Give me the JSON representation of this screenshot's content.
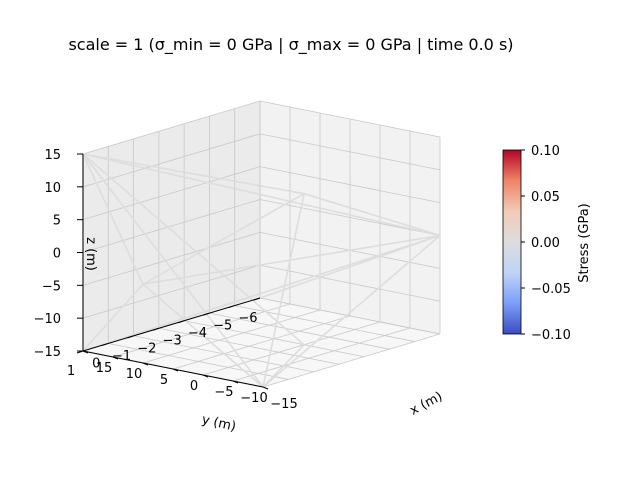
{
  "chart_data": {
    "type": "3d-wireframe",
    "title": "scale = 1 (σ_min = 0 GPa | σ_max = 0 GPa | time 0.0 s)",
    "xlabel": "x (m)",
    "ylabel": "y (m)",
    "zlabel": "z (m)",
    "xlim": [
      -15,
      15
    ],
    "ylim": [
      -6,
      1
    ],
    "zlim": [
      -15,
      15
    ],
    "xticks": [
      "−15",
      "−10",
      "−5",
      "0",
      "5",
      "10",
      "15"
    ],
    "yticks": [
      "−6",
      "−5",
      "−4",
      "−3",
      "−2",
      "−1",
      "0",
      "1"
    ],
    "zticks": [
      "15",
      "10",
      "5",
      "0",
      "−5",
      "−10",
      "−15"
    ],
    "grid": true,
    "member_color": "#dddddd",
    "members": [
      {
        "from": [
          -15,
          1,
          15
        ],
        "to": [
          15,
          -6,
          0
        ]
      },
      {
        "from": [
          -15,
          1,
          15
        ],
        "to": [
          5,
          -3,
          -15
        ]
      },
      {
        "from": [
          -15,
          1,
          15
        ],
        "to": [
          15,
          1,
          -15
        ]
      },
      {
        "from": [
          -15,
          1,
          15
        ],
        "to": [
          -15,
          1,
          -15
        ]
      },
      {
        "from": [
          5,
          -3,
          8
        ],
        "to": [
          15,
          -6,
          0
        ]
      },
      {
        "from": [
          5,
          -3,
          8
        ],
        "to": [
          -15,
          1,
          15
        ]
      },
      {
        "from": [
          5,
          -3,
          8
        ],
        "to": [
          15,
          1,
          -15
        ]
      },
      {
        "from": [
          5,
          -3,
          8
        ],
        "to": [
          -5,
          1,
          -3
        ]
      },
      {
        "from": [
          15,
          -6,
          0
        ],
        "to": [
          -5,
          1,
          -3
        ]
      },
      {
        "from": [
          15,
          -6,
          0
        ],
        "to": [
          15,
          1,
          -15
        ]
      },
      {
        "from": [
          15,
          -6,
          0
        ],
        "to": [
          -15,
          -6,
          -15
        ]
      },
      {
        "from": [
          15,
          -6,
          0
        ],
        "to": [
          -15,
          1,
          -15
        ]
      },
      {
        "from": [
          -5,
          1,
          -3
        ],
        "to": [
          15,
          1,
          -15
        ]
      },
      {
        "from": [
          -5,
          1,
          -3
        ],
        "to": [
          -15,
          1,
          -15
        ]
      },
      {
        "from": [
          -5,
          1,
          -3
        ],
        "to": [
          -15,
          1,
          15
        ]
      },
      {
        "from": [
          15,
          1,
          -15
        ],
        "to": [
          -15,
          1,
          -15
        ]
      },
      {
        "from": [
          15,
          1,
          -15
        ],
        "to": [
          5,
          -3,
          -15
        ]
      }
    ],
    "colorbar": {
      "label": "Stress (GPa)",
      "min": -0.1,
      "max": 0.1,
      "colormap": "coolwarm",
      "ticks": [
        "0.10",
        "0.05",
        "0.00",
        "−0.05",
        "−0.10"
      ],
      "tick_values": [
        0.1,
        0.05,
        0.0,
        -0.05,
        -0.1
      ],
      "colors": [
        "#3b4cc0",
        "#7b9ff9",
        "#c0d4f5",
        "#dddddd",
        "#f2cbb7",
        "#ee8468",
        "#b40426"
      ]
    }
  }
}
